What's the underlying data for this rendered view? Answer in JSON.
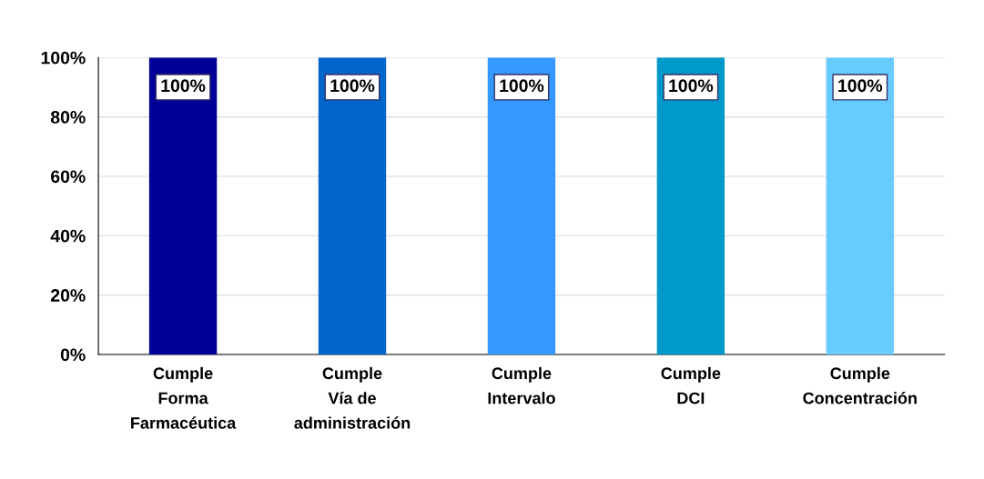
{
  "chart_data": {
    "type": "bar",
    "categories": [
      "Cumple\nForma\nFarmacéutica",
      "Cumple\nVía de\nadministración",
      "Cumple\nIntervalo",
      "Cumple\nDCI",
      "Cumple\nConcentración"
    ],
    "values": [
      100,
      100,
      100,
      100,
      100
    ],
    "colors": [
      "#000099",
      "#0066cc",
      "#3399ff",
      "#0099cc",
      "#66ccff"
    ],
    "value_labels": [
      "100%",
      "100%",
      "100%",
      "100%",
      "100%"
    ],
    "ylim": [
      0,
      100
    ],
    "yticks": [
      {
        "value": 0,
        "label": "0%"
      },
      {
        "value": 20,
        "label": "20%"
      },
      {
        "value": 40,
        "label": "40%"
      },
      {
        "value": 60,
        "label": "60%"
      },
      {
        "value": 80,
        "label": "80%"
      },
      {
        "value": 100,
        "label": "100%"
      }
    ],
    "grid": "y"
  }
}
